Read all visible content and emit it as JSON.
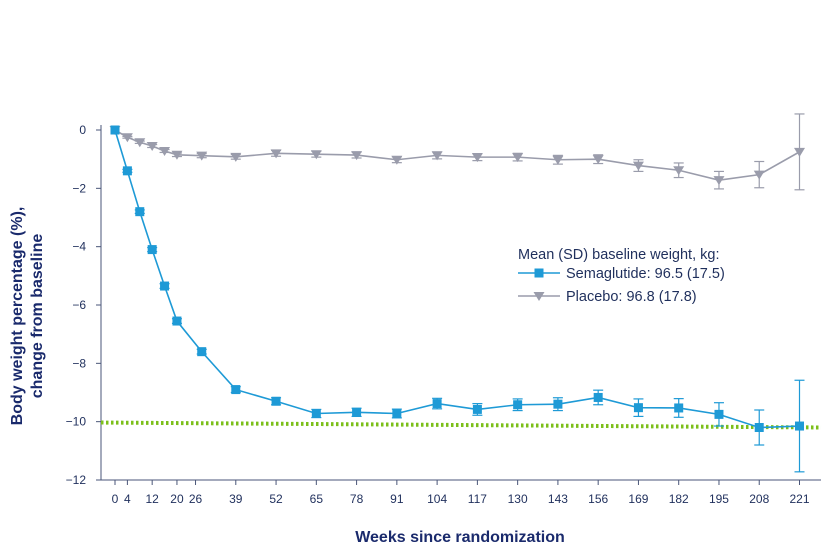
{
  "chart_data": {
    "type": "line",
    "xlabel": "Weeks since randomization",
    "ylabel_line1": "Body weight percentage (%),",
    "ylabel_line2": "change from baseline",
    "ylim": [
      -12,
      0
    ],
    "yticks": [
      0,
      -2,
      -4,
      -6,
      -8,
      -10,
      -12
    ],
    "ytick_labels": [
      "0",
      "−2",
      "−4",
      "−6",
      "−8",
      "−10",
      "−12"
    ],
    "xticks": [
      0,
      4,
      12,
      20,
      26,
      39,
      52,
      65,
      78,
      91,
      104,
      117,
      130,
      143,
      156,
      169,
      182,
      195,
      208,
      221
    ],
    "legend_title": "Mean (SD) baseline weight, kg:",
    "reference_line": {
      "y": -10.03,
      "y_end": -10.2,
      "color": "#7cbf1a",
      "style": "dotted"
    },
    "series": [
      {
        "name": "Semaglutide: 96.5 (17.5)",
        "color": "#1e9ad6",
        "marker": "square",
        "x": [
          0,
          4,
          8,
          12,
          16,
          20,
          28,
          39,
          52,
          65,
          78,
          91,
          104,
          117,
          130,
          143,
          156,
          169,
          182,
          195,
          208,
          221
        ],
        "y": [
          0,
          -1.4,
          -2.8,
          -4.1,
          -5.35,
          -6.55,
          -7.6,
          -8.9,
          -9.3,
          -9.72,
          -9.68,
          -9.72,
          -9.38,
          -9.58,
          -9.42,
          -9.4,
          -9.17,
          -9.52,
          -9.53,
          -9.75,
          -10.2,
          -10.15
        ],
        "err": [
          0,
          0.05,
          0.06,
          0.07,
          0.08,
          0.08,
          0.08,
          0.1,
          0.12,
          0.14,
          0.14,
          0.15,
          0.18,
          0.2,
          0.2,
          0.22,
          0.25,
          0.3,
          0.32,
          0.4,
          0.6,
          1.57
        ]
      },
      {
        "name": "Placebo: 96.8 (17.8)",
        "color": "#9a9cab",
        "marker": "triangle-down",
        "x": [
          0,
          4,
          8,
          12,
          16,
          20,
          28,
          39,
          52,
          65,
          78,
          91,
          104,
          117,
          130,
          143,
          156,
          169,
          182,
          195,
          208,
          221
        ],
        "y": [
          0,
          -0.25,
          -0.42,
          -0.55,
          -0.72,
          -0.85,
          -0.88,
          -0.92,
          -0.8,
          -0.83,
          -0.86,
          -1.02,
          -0.87,
          -0.93,
          -0.93,
          -1.02,
          -1.0,
          -1.22,
          -1.38,
          -1.72,
          -1.53,
          -0.75
        ],
        "err": [
          0,
          0.03,
          0.04,
          0.05,
          0.05,
          0.06,
          0.07,
          0.08,
          0.1,
          0.1,
          0.1,
          0.1,
          0.12,
          0.12,
          0.13,
          0.15,
          0.15,
          0.2,
          0.25,
          0.3,
          0.45,
          1.3
        ]
      }
    ]
  }
}
